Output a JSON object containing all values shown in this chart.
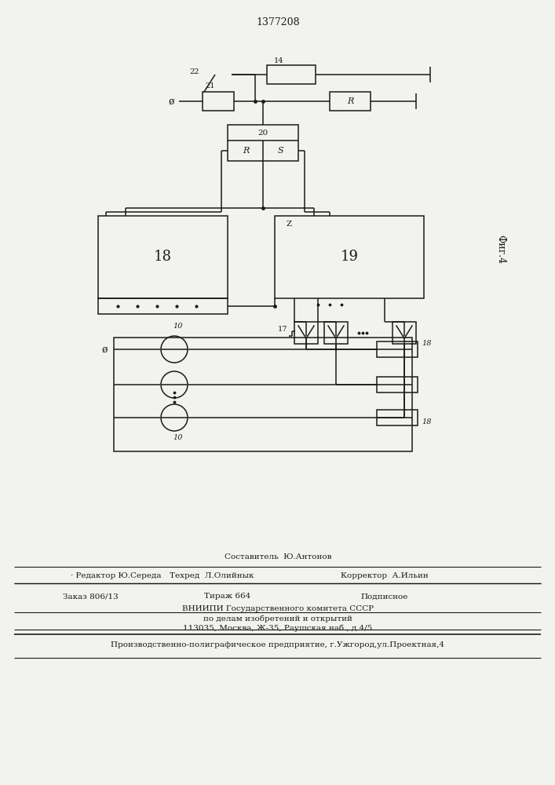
{
  "title": "1377208",
  "fig4_label": "Фиг.4",
  "background_color": "#f2f2ee",
  "line_color": "#1a1a1a",
  "text_color": "#1a1a1a",
  "footer": {
    "line1": "Составитель  Ю.Антонов",
    "line2_left": "· Редактор Ю.Середа",
    "line2_mid": "Техред  Л.Олийнык",
    "line2_right": "Корректор  А.Ильин",
    "line3_left": "Заказ 806/13",
    "line3_mid": "Тираж 664",
    "line3_right": "Подписное",
    "line4": "ВНИИПИ Государственного комитета СССР",
    "line5": "по делам изобретений и открытий",
    "line6": "113035, Москва, Ж-35, Раушская наб., д.4/5",
    "line7": "Производственно-полиграфическое предприятие, г.Ужгород,ул.Проектная,4"
  }
}
